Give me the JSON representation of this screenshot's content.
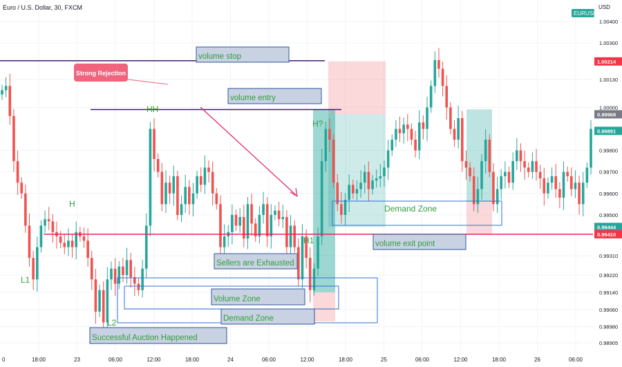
{
  "header": {
    "symbol_title": "Euro / U.S. Dollar, 30, FXCM",
    "currency": "USD",
    "ticker_badge": "EURUSD"
  },
  "colors": {
    "up": "#26a69a",
    "down": "#ef5350",
    "grid": "#f0f3fa",
    "axis_text": "#131722",
    "purple_line": "#3b1a6b",
    "exit_line": "#e0245e",
    "box_fill": "#c9d2e3",
    "box_border": "#2f5597",
    "label_green": "#2e9e3b",
    "teal_zone": "#26a69a",
    "pink_zone": "#f7a8ad",
    "rejection_badge": "#f0647e"
  },
  "chart_data": {
    "type": "candlestick",
    "symbol": "EURUSD",
    "timeframe": "30",
    "ylim": [
      0.98895,
      1.0044
    ],
    "y_ticks": [
      "1.00400",
      "1.00300",
      "1.00214",
      "1.00130",
      "1.00000",
      "0.99968",
      "0.99891",
      "0.99800",
      "0.99700",
      "0.99600",
      "0.99500",
      "0.99444",
      "0.99410",
      "0.99310",
      "0.99220",
      "0.99140",
      "0.99060",
      "0.98980",
      "0.98905"
    ],
    "price_badges": [
      {
        "value": "1.00214",
        "style": "red"
      },
      {
        "value": "0.99968",
        "style": "gray"
      },
      {
        "value": "0.99891",
        "style": "green"
      },
      {
        "value": "0.99444",
        "style": "green"
      },
      {
        "value": "0.99410",
        "style": "red"
      }
    ],
    "x_ticks": [
      "18:00",
      "23",
      "06:00",
      "12:00",
      "18:00",
      "24",
      "06:00",
      "12:00",
      "18:00",
      "25",
      "06:00",
      "12:00",
      "18:00",
      "26",
      "06:00"
    ],
    "candles_close": [
      1.0008,
      1.001,
      0.9996,
      0.9975,
      0.9965,
      0.996,
      0.9945,
      0.993,
      0.992,
      0.9935,
      0.9945,
      0.9948,
      0.9947,
      0.9942,
      0.994,
      0.9937,
      0.9935,
      0.9938,
      0.9935,
      0.9942,
      0.994,
      0.9938,
      0.993,
      0.992,
      0.9905,
      0.9915,
      0.99,
      0.992,
      0.9925,
      0.9918,
      0.9926,
      0.9922,
      0.9929,
      0.9921,
      0.9918,
      0.9915,
      0.9925,
      0.9945,
      0.999,
      0.9976,
      0.997,
      0.9955,
      0.9965,
      0.996,
      0.9968,
      0.995,
      0.9955,
      0.9963,
      0.9955,
      0.996,
      0.9968,
      0.9964,
      0.9972,
      0.997,
      0.996,
      0.9955,
      0.9935,
      0.994,
      0.9942,
      0.995,
      0.9945,
      0.9949,
      0.9939,
      0.9955,
      0.9946,
      0.994,
      0.995,
      0.9955,
      0.994,
      0.995,
      0.9952,
      0.9948,
      0.9949,
      0.9935,
      0.9945,
      0.9935,
      0.992,
      0.994,
      0.993,
      0.9915,
      0.9925,
      0.994,
      0.9975,
      0.999,
      0.9985,
      0.9965,
      0.9955,
      0.995,
      0.9957,
      0.9964,
      0.996,
      0.9962,
      0.9965,
      0.997,
      0.9962,
      0.9966,
      0.9967,
      0.9968,
      0.9972,
      0.998,
      0.9985,
      0.999,
      0.9988,
      0.9992,
      0.999,
      0.9985,
      0.998,
      0.9993,
      0.999,
      1.0,
      1.001,
      1.0022,
      1.0018,
      1.001,
      1.0,
      0.999,
      0.9985,
      0.9995,
      0.9975,
      0.9972,
      0.9968,
      0.9955,
      0.9962,
      0.9975,
      0.9985,
      0.997,
      0.9955,
      0.9962,
      0.9968,
      0.997,
      0.9965,
      0.9975,
      0.998,
      0.9975,
      0.9972,
      0.997,
      0.9975,
      0.997,
      0.9967,
      0.996,
      0.9965,
      0.9968,
      0.9962,
      0.9958,
      0.997,
      0.9968,
      0.9962,
      0.9965,
      0.9955,
      0.9965,
      0.9972,
      0.999
    ],
    "series": [
      {
        "type": "candlestick",
        "up_color": "#26a69a",
        "down_color": "#ef5350"
      }
    ],
    "annotations": {
      "labels": [
        "L1",
        "H",
        "HH",
        "L2",
        "H?",
        "H1"
      ],
      "boxes": {
        "volume_stop": "volume stop",
        "volume_entry": "volume entry",
        "strong_rejection": "Strong Rejection",
        "demand_zone_right": "Demand Zone",
        "volume_exit": "volume exit point",
        "sellers_exhausted": "Sellers are Exhausted",
        "volume_zone": "Volume Zone",
        "demand_zone_left": "Demand Zone",
        "successful_auction": "Successful Auction Happened"
      },
      "levels": {
        "volume_stop": 1.00214,
        "volume_entry": 0.9999,
        "volume_exit": 0.9941
      }
    }
  }
}
